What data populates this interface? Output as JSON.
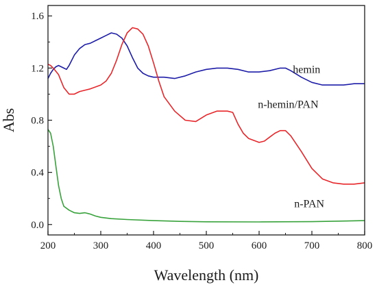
{
  "chart_data": {
    "type": "line",
    "title": "",
    "xlabel": "Wavelength (nm)",
    "ylabel": "Abs",
    "xlim": [
      200,
      800
    ],
    "ylim": [
      -0.08,
      1.68
    ],
    "xticks": [
      200,
      300,
      400,
      500,
      600,
      700,
      800
    ],
    "yticks": [
      0.0,
      0.4,
      0.8,
      1.2,
      1.6
    ],
    "xtick_labels": [
      "200",
      "300",
      "400",
      "500",
      "600",
      "700",
      "800"
    ],
    "ytick_labels": [
      "0.0",
      "0.4",
      "0.8",
      "1.2",
      "1.6"
    ],
    "grid": false,
    "legend": "none",
    "series": [
      {
        "name": "hemin",
        "color": "#1c1ca8",
        "label_at": [
          690,
          1.19
        ],
        "points": [
          [
            200,
            1.12
          ],
          [
            205,
            1.16
          ],
          [
            210,
            1.19
          ],
          [
            215,
            1.21
          ],
          [
            220,
            1.22
          ],
          [
            225,
            1.21
          ],
          [
            230,
            1.2
          ],
          [
            235,
            1.19
          ],
          [
            240,
            1.22
          ],
          [
            250,
            1.3
          ],
          [
            260,
            1.35
          ],
          [
            270,
            1.38
          ],
          [
            280,
            1.39
          ],
          [
            290,
            1.41
          ],
          [
            300,
            1.43
          ],
          [
            310,
            1.45
          ],
          [
            320,
            1.47
          ],
          [
            330,
            1.46
          ],
          [
            340,
            1.43
          ],
          [
            350,
            1.37
          ],
          [
            360,
            1.28
          ],
          [
            370,
            1.2
          ],
          [
            380,
            1.16
          ],
          [
            390,
            1.14
          ],
          [
            400,
            1.13
          ],
          [
            420,
            1.13
          ],
          [
            440,
            1.12
          ],
          [
            460,
            1.14
          ],
          [
            480,
            1.17
          ],
          [
            500,
            1.19
          ],
          [
            520,
            1.2
          ],
          [
            540,
            1.2
          ],
          [
            560,
            1.19
          ],
          [
            580,
            1.17
          ],
          [
            600,
            1.17
          ],
          [
            620,
            1.18
          ],
          [
            640,
            1.2
          ],
          [
            650,
            1.2
          ],
          [
            660,
            1.18
          ],
          [
            680,
            1.13
          ],
          [
            700,
            1.09
          ],
          [
            720,
            1.07
          ],
          [
            740,
            1.07
          ],
          [
            760,
            1.07
          ],
          [
            780,
            1.08
          ],
          [
            800,
            1.08
          ]
        ]
      },
      {
        "name": "n-hemin/PAN",
        "color": "#e8262a",
        "label_at": [
          655,
          0.92
        ],
        "points": [
          [
            200,
            1.23
          ],
          [
            205,
            1.22
          ],
          [
            210,
            1.2
          ],
          [
            220,
            1.15
          ],
          [
            230,
            1.05
          ],
          [
            240,
            1.0
          ],
          [
            250,
            1.0
          ],
          [
            260,
            1.02
          ],
          [
            280,
            1.04
          ],
          [
            300,
            1.07
          ],
          [
            310,
            1.1
          ],
          [
            320,
            1.16
          ],
          [
            330,
            1.26
          ],
          [
            340,
            1.38
          ],
          [
            350,
            1.47
          ],
          [
            360,
            1.51
          ],
          [
            370,
            1.5
          ],
          [
            380,
            1.46
          ],
          [
            390,
            1.37
          ],
          [
            400,
            1.24
          ],
          [
            410,
            1.1
          ],
          [
            420,
            0.98
          ],
          [
            440,
            0.87
          ],
          [
            460,
            0.8
          ],
          [
            480,
            0.79
          ],
          [
            500,
            0.84
          ],
          [
            520,
            0.87
          ],
          [
            540,
            0.87
          ],
          [
            550,
            0.86
          ],
          [
            560,
            0.77
          ],
          [
            570,
            0.7
          ],
          [
            580,
            0.66
          ],
          [
            600,
            0.63
          ],
          [
            610,
            0.64
          ],
          [
            620,
            0.67
          ],
          [
            630,
            0.7
          ],
          [
            640,
            0.72
          ],
          [
            650,
            0.72
          ],
          [
            660,
            0.68
          ],
          [
            680,
            0.56
          ],
          [
            700,
            0.43
          ],
          [
            720,
            0.35
          ],
          [
            740,
            0.32
          ],
          [
            760,
            0.31
          ],
          [
            780,
            0.31
          ],
          [
            800,
            0.32
          ]
        ]
      },
      {
        "name": "n-PAN",
        "color": "#37a23a",
        "label_at": [
          695,
          0.16
        ],
        "points": [
          [
            200,
            0.73
          ],
          [
            205,
            0.7
          ],
          [
            210,
            0.6
          ],
          [
            215,
            0.45
          ],
          [
            220,
            0.3
          ],
          [
            225,
            0.2
          ],
          [
            230,
            0.14
          ],
          [
            240,
            0.11
          ],
          [
            250,
            0.09
          ],
          [
            260,
            0.085
          ],
          [
            270,
            0.09
          ],
          [
            280,
            0.08
          ],
          [
            290,
            0.065
          ],
          [
            300,
            0.055
          ],
          [
            320,
            0.045
          ],
          [
            350,
            0.038
          ],
          [
            400,
            0.03
          ],
          [
            450,
            0.024
          ],
          [
            500,
            0.021
          ],
          [
            600,
            0.02
          ],
          [
            700,
            0.022
          ],
          [
            800,
            0.03
          ]
        ]
      }
    ]
  }
}
